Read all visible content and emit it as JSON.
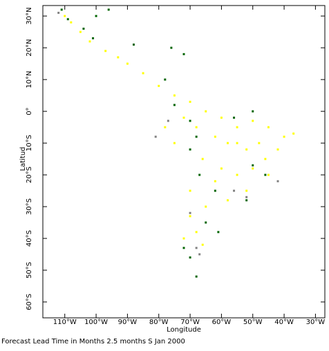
{
  "chart_data": {
    "type": "scatter",
    "xlabel": "Longitude",
    "ylabel": "Latitud",
    "caption": "Forecast Lead Time in Months 2.5 months S Jan 2000",
    "xlim": [
      -117,
      -27
    ],
    "ylim": [
      -65,
      33.3
    ],
    "xticks": [
      {
        "value": -110,
        "label": "110°W"
      },
      {
        "value": -100,
        "label": "100°W"
      },
      {
        "value": -90,
        "label": "90°W"
      },
      {
        "value": -80,
        "label": "80°W"
      },
      {
        "value": -70,
        "label": "70°W"
      },
      {
        "value": -60,
        "label": "60°W"
      },
      {
        "value": -50,
        "label": "50°W"
      },
      {
        "value": -40,
        "label": "40°W"
      },
      {
        "value": -30,
        "label": "30°W"
      }
    ],
    "yticks": [
      {
        "value": 30,
        "label": "30°N"
      },
      {
        "value": 20,
        "label": "20°N"
      },
      {
        "value": 10,
        "label": "10°N"
      },
      {
        "value": 0,
        "label": "0°"
      },
      {
        "value": -10,
        "label": "10°S"
      },
      {
        "value": -20,
        "label": "20°S"
      },
      {
        "value": -30,
        "label": "30°S"
      },
      {
        "value": -40,
        "label": "40°S"
      },
      {
        "value": -50,
        "label": "50°S"
      },
      {
        "value": -60,
        "label": "60°S"
      }
    ],
    "series": [
      {
        "color": "#ffff00",
        "x": [
          -110,
          -108,
          -105,
          -102,
          -97,
          -93,
          -90,
          -85,
          -80,
          -75,
          -70,
          -65,
          -60,
          -55,
          -50,
          -45,
          -40,
          -37,
          -42,
          -48,
          -52,
          -58,
          -62,
          -68,
          -72,
          -66,
          -60,
          -55,
          -50,
          -45,
          -62,
          -58,
          -65,
          -70,
          -68,
          -72,
          -66,
          -70,
          -75,
          -78,
          -52,
          -55,
          -46
        ],
        "values": [
          30,
          28,
          25,
          22,
          19,
          17,
          15,
          12,
          8,
          5,
          3,
          0,
          -2,
          -5,
          -3,
          -5,
          -8,
          -7,
          -12,
          -10,
          -12,
          -10,
          -8,
          -5,
          -2,
          -15,
          -18,
          -20,
          -18,
          -20,
          -22,
          -28,
          -30,
          -33,
          -38,
          -40,
          -42,
          -25,
          -10,
          -5,
          -25,
          -10,
          -15
        ]
      },
      {
        "color": "#006400",
        "x": [
          -111,
          -109,
          -104,
          -101,
          -100,
          -96,
          -88,
          -76,
          -72,
          -78,
          -75,
          -70,
          -68,
          -70,
          -56,
          -50,
          -62,
          -67,
          -50,
          -46,
          -52,
          -61,
          -65,
          -72,
          -70,
          -68
        ],
        "values": [
          32,
          29,
          26,
          23,
          30,
          32,
          21,
          20,
          18,
          10,
          2,
          -3,
          -8,
          -12,
          -2,
          0,
          -25,
          -20,
          -17,
          -20,
          -28,
          -38,
          -35,
          -43,
          -46,
          -52
        ]
      },
      {
        "color": "#808080",
        "x": [
          -112,
          -81,
          -77,
          -56,
          -52,
          -42,
          -68,
          -67,
          -70
        ],
        "values": [
          31,
          -8,
          -3,
          -25,
          -27,
          -22,
          -43,
          -45,
          -32
        ]
      }
    ]
  }
}
